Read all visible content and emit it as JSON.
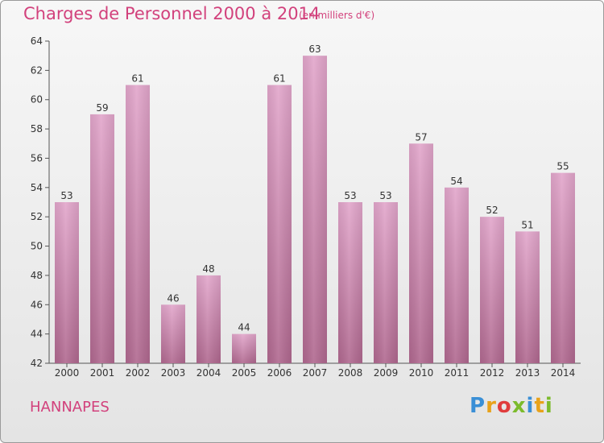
{
  "header": {
    "title": "Charges de Personnel 2000 à 2014",
    "subtitle": "(en milliers d'€)"
  },
  "footer": {
    "commune": "HANNAPES",
    "brand": "Proxiti",
    "brand_colors": [
      "#3a8fd6",
      "#e8a21a",
      "#e03c3c",
      "#7cbb2c",
      "#3a8fd6",
      "#e8a21a",
      "#7cbb2c"
    ]
  },
  "colors": {
    "bar_top": "#e2a6cb",
    "bar_bottom": "#b0688f",
    "text_accent": "#d2417c"
  },
  "chart_data": {
    "type": "bar",
    "title": "Charges de Personnel 2000 à 2014",
    "subtitle": "(en milliers d'€)",
    "categories": [
      "2000",
      "2001",
      "2002",
      "2003",
      "2004",
      "2005",
      "2006",
      "2007",
      "2008",
      "2009",
      "2010",
      "2011",
      "2012",
      "2013",
      "2014"
    ],
    "values": [
      53,
      59,
      61,
      46,
      48,
      44,
      61,
      63,
      53,
      53,
      57,
      54,
      52,
      51,
      55
    ],
    "ylim": [
      42,
      64
    ],
    "yticks": [
      42,
      44,
      46,
      48,
      50,
      52,
      54,
      56,
      58,
      60,
      62,
      64
    ],
    "grid": false,
    "legend": "none"
  }
}
